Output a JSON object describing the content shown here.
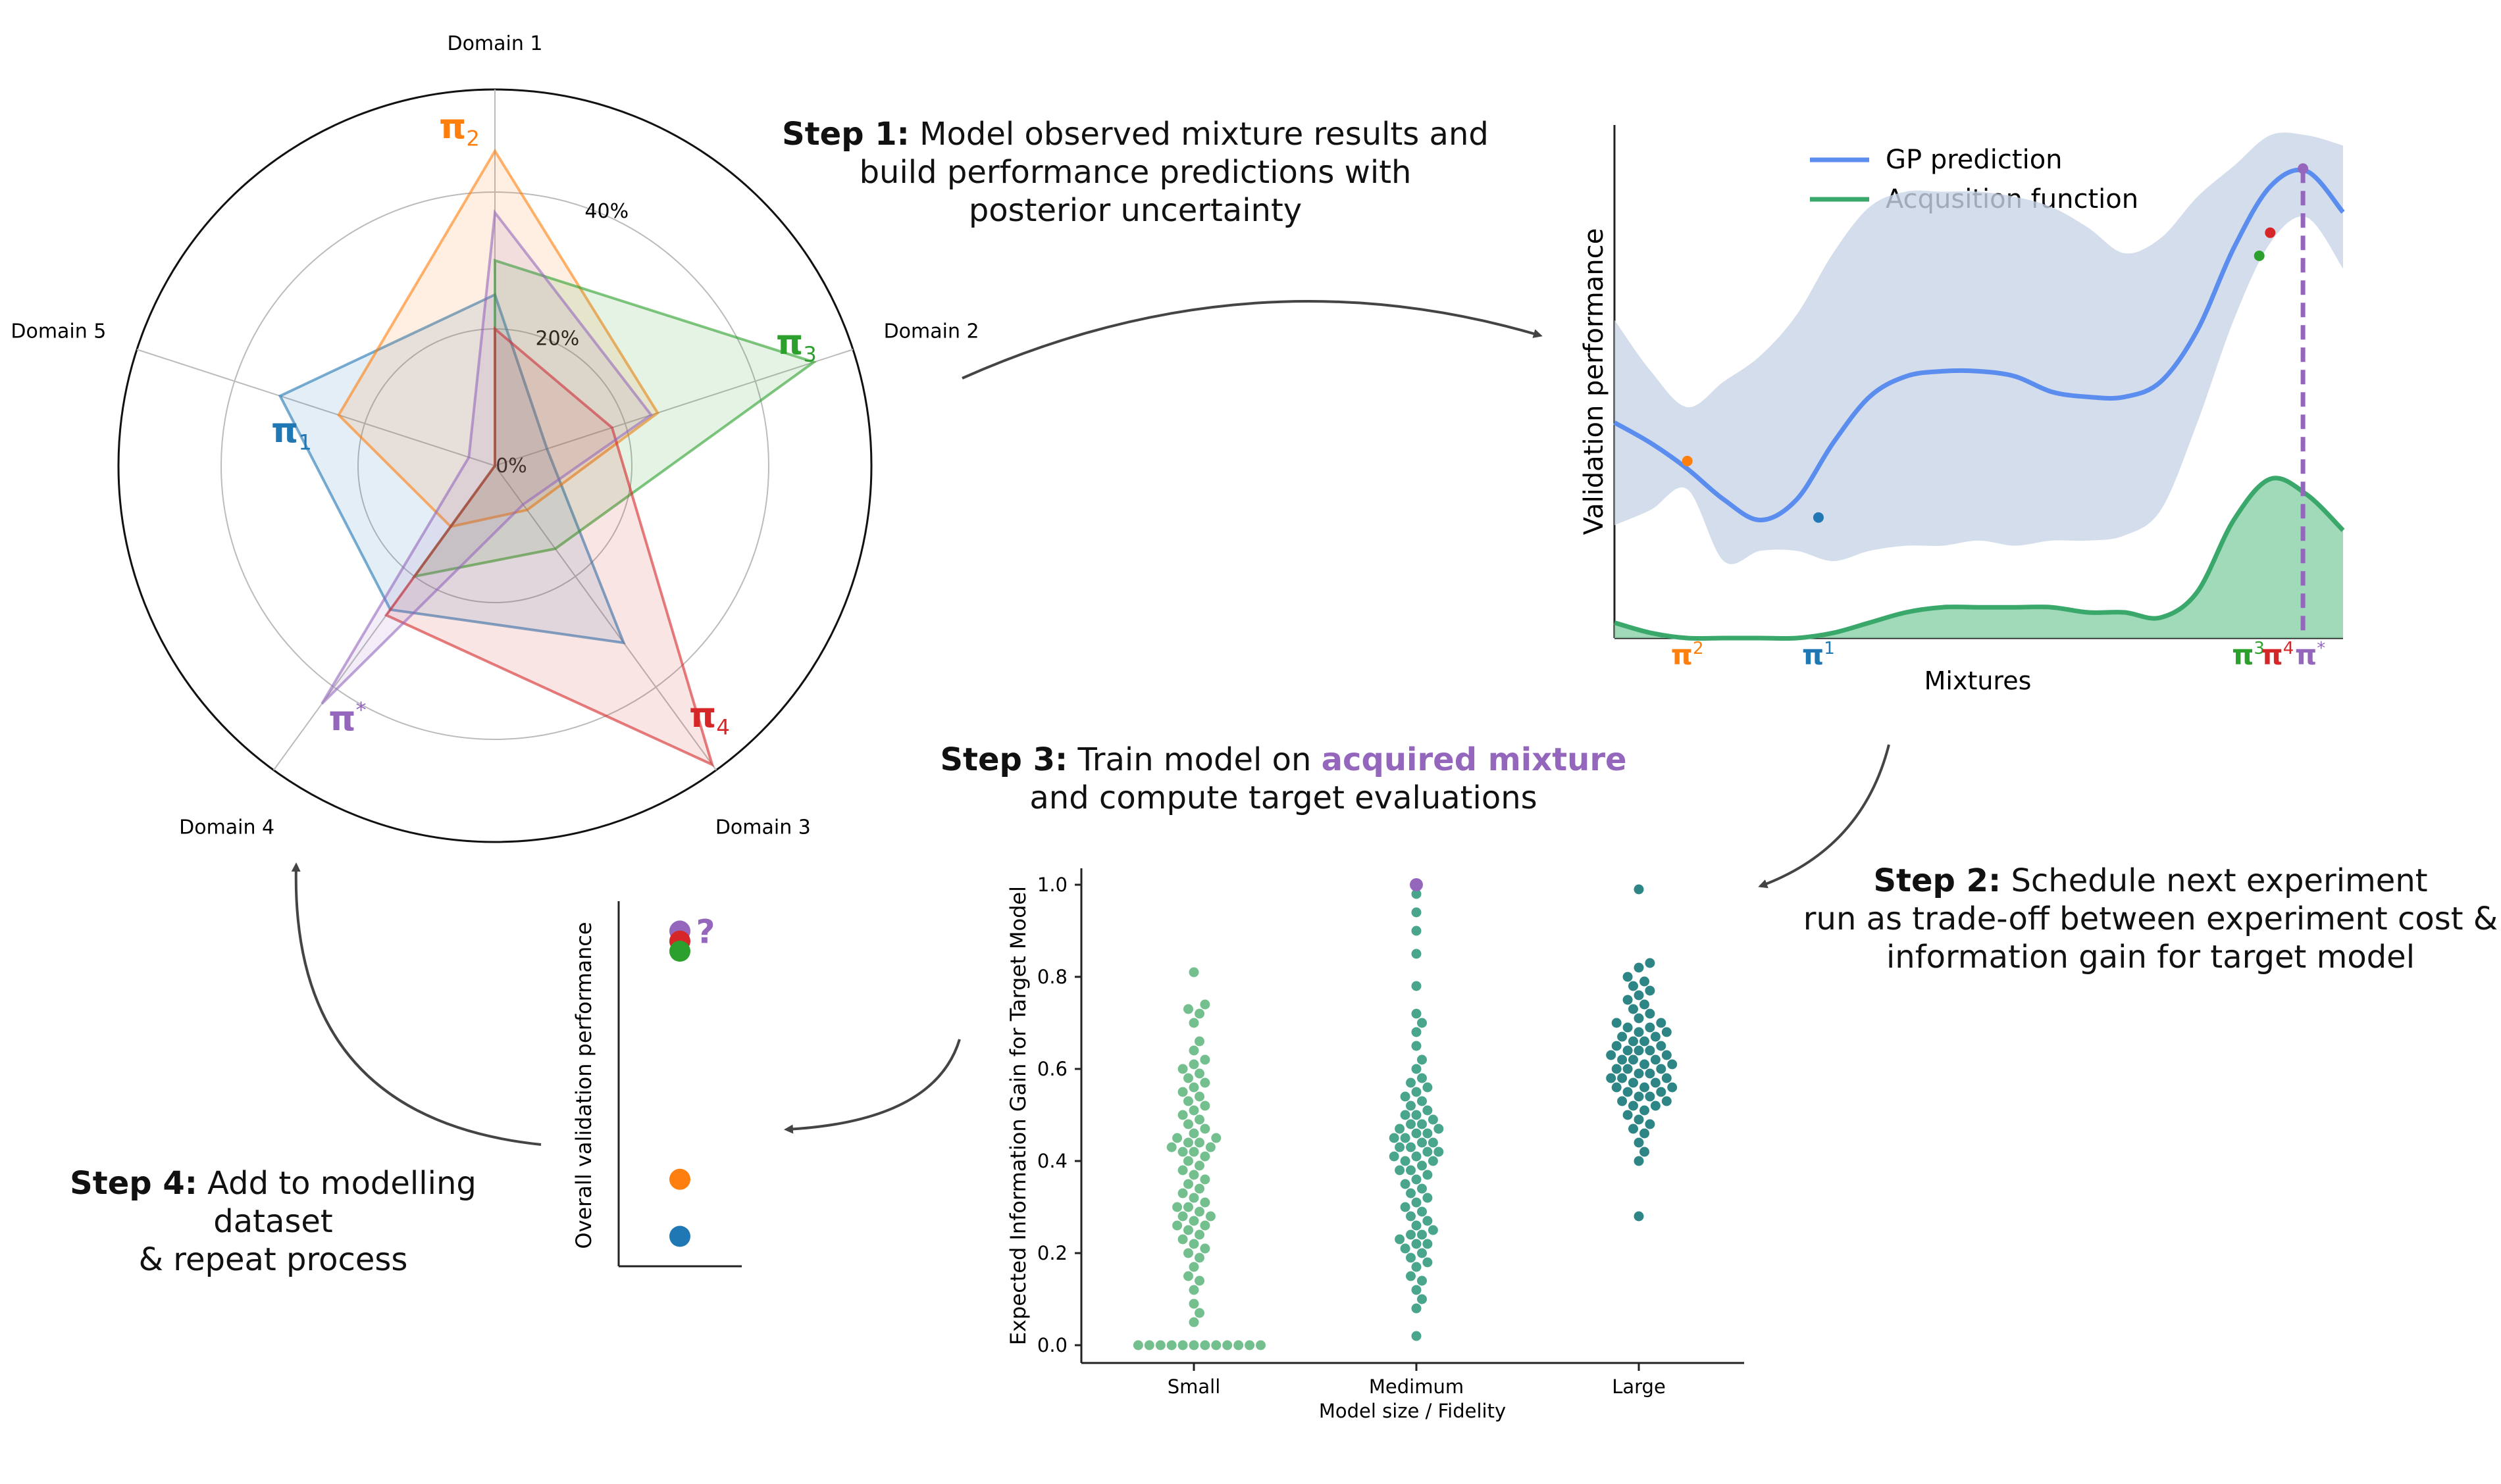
{
  "colors": {
    "pi1": "#1f77b4",
    "pi2": "#ff7f0e",
    "pi3": "#2ca02c",
    "pi4": "#d62728",
    "pistar": "#9467bd",
    "gp_line": "#5b8def",
    "gp_band": "#c9d5e6",
    "acq": "#3aa86b",
    "acq_fill": "#8fd3ad",
    "swarm_small": "#74bf8e",
    "swarm_medium": "#4aa58d",
    "swarm_large": "#2e8585",
    "arrow": "#444444"
  },
  "steps": {
    "step1": {
      "label": "Step 1:",
      "text_line1": "Model observed mixture results and",
      "text_line2": "build performance predictions with",
      "text_line3": "posterior uncertainty"
    },
    "step2": {
      "label": "Step 2:",
      "text_line1": "Schedule next experiment",
      "text_line2": "run as trade-off between experiment cost &",
      "text_line3": "information gain for target model"
    },
    "step3": {
      "label": "Step 3:",
      "text_pre": "Train model on",
      "highlight": "acquired mixture",
      "text_line2": "and compute target evaluations"
    },
    "step4": {
      "label": "Step 4:",
      "text_line1": "Add to modelling dataset",
      "text_line2": "& repeat process"
    }
  },
  "radar": {
    "axes": [
      "Domain 1",
      "Domain 2",
      "Domain 3",
      "Domain 4",
      "Domain 5"
    ],
    "ring_labels": [
      "0%",
      "20%",
      "40%"
    ],
    "series": [
      {
        "name": "π",
        "sub": "1",
        "sup": "",
        "color_key": "pi1",
        "values": [
          0.25,
          0.08,
          0.32,
          0.26,
          0.33
        ]
      },
      {
        "name": "π",
        "sub": "2",
        "sup": "",
        "color_key": "pi2",
        "values": [
          0.46,
          0.25,
          0.08,
          0.11,
          0.24
        ]
      },
      {
        "name": "π",
        "sub": "3",
        "sup": "",
        "color_key": "pi3",
        "values": [
          0.3,
          0.49,
          0.15,
          0.2,
          0.0
        ]
      },
      {
        "name": "π",
        "sub": "4",
        "sup": "",
        "color_key": "pi4",
        "values": [
          0.2,
          0.18,
          0.54,
          0.27,
          0.0
        ]
      },
      {
        "name": "π",
        "sub": "",
        "sup": "*",
        "color_key": "pistar",
        "values": [
          0.37,
          0.24,
          0.07,
          0.43,
          0.04
        ]
      }
    ]
  },
  "chart_data": [
    {
      "type": "line",
      "title": "",
      "xlabel": "Mixtures",
      "ylabel": "Validation performance",
      "legend": [
        "GP prediction",
        "Acqusition function"
      ],
      "legend_position": "top",
      "x": [
        0,
        0.05,
        0.1,
        0.15,
        0.2,
        0.25,
        0.3,
        0.35,
        0.4,
        0.45,
        0.5,
        0.55,
        0.6,
        0.65,
        0.7,
        0.75,
        0.8,
        0.85,
        0.9,
        0.95,
        1.0
      ],
      "series": [
        {
          "name": "GP prediction",
          "values": [
            0.42,
            0.38,
            0.33,
            0.27,
            0.23,
            0.27,
            0.38,
            0.47,
            0.51,
            0.52,
            0.52,
            0.51,
            0.48,
            0.47,
            0.47,
            0.5,
            0.6,
            0.76,
            0.88,
            0.91,
            0.83
          ]
        },
        {
          "name": "Acqusition function",
          "values": [
            0.03,
            0.01,
            0.0,
            0.0,
            0.0,
            0.0,
            0.01,
            0.03,
            0.05,
            0.06,
            0.06,
            0.06,
            0.06,
            0.05,
            0.05,
            0.04,
            0.09,
            0.23,
            0.31,
            0.28,
            0.21
          ]
        }
      ],
      "band_upper": [
        0.62,
        0.52,
        0.45,
        0.5,
        0.55,
        0.63,
        0.75,
        0.84,
        0.87,
        0.87,
        0.87,
        0.86,
        0.84,
        0.8,
        0.75,
        0.78,
        0.86,
        0.92,
        0.98,
        0.98,
        0.96
      ],
      "band_lower": [
        0.22,
        0.25,
        0.29,
        0.15,
        0.17,
        0.17,
        0.15,
        0.17,
        0.18,
        0.18,
        0.19,
        0.18,
        0.19,
        0.19,
        0.2,
        0.25,
        0.42,
        0.62,
        0.77,
        0.82,
        0.72
      ],
      "observed_points": [
        {
          "x": 0.1,
          "y": 0.345,
          "color_key": "pi2",
          "label": "π",
          "sub": "",
          "sup": "2"
        },
        {
          "x": 0.28,
          "y": 0.235,
          "color_key": "pi1",
          "label": "π",
          "sub": "",
          "sup": "1"
        },
        {
          "x": 0.885,
          "y": 0.745,
          "color_key": "pi3",
          "label": "π",
          "sub": "",
          "sup": "3"
        },
        {
          "x": 0.9,
          "y": 0.79,
          "color_key": "pi4",
          "label": "π",
          "sub": "",
          "sup": "4"
        },
        {
          "x": 0.945,
          "y": 0.915,
          "color_key": "pistar",
          "label": "π",
          "sub": "",
          "sup": "*"
        }
      ],
      "acquired_x": 0.945,
      "ylim": [
        0,
        1
      ],
      "xlim": [
        0,
        1
      ]
    },
    {
      "type": "scatter",
      "title": "",
      "xlabel": "Model size / Fidelity",
      "ylabel": "Expected Information Gain for Target Model",
      "categories": [
        "Small",
        "Medimum",
        "Large"
      ],
      "yticks": [
        "0.0",
        "0.2",
        "0.4",
        "0.6",
        "0.8",
        "1.0"
      ],
      "ylim": [
        -0.04,
        1.04
      ],
      "highlight": {
        "category": "Medimum",
        "value": 1.0,
        "color_key": "pistar"
      },
      "series": [
        {
          "name": "Small",
          "color_key": "swarm_small",
          "values": [
            0.0,
            0.0,
            0.0,
            0.0,
            0.0,
            0.0,
            0.0,
            0.0,
            0.0,
            0.0,
            0.0,
            0.0,
            0.05,
            0.07,
            0.09,
            0.12,
            0.14,
            0.15,
            0.17,
            0.19,
            0.2,
            0.21,
            0.22,
            0.23,
            0.24,
            0.25,
            0.26,
            0.26,
            0.27,
            0.28,
            0.28,
            0.29,
            0.3,
            0.3,
            0.31,
            0.32,
            0.33,
            0.34,
            0.35,
            0.36,
            0.37,
            0.38,
            0.39,
            0.4,
            0.41,
            0.42,
            0.42,
            0.43,
            0.43,
            0.44,
            0.44,
            0.45,
            0.45,
            0.46,
            0.47,
            0.48,
            0.49,
            0.5,
            0.51,
            0.52,
            0.53,
            0.54,
            0.55,
            0.56,
            0.57,
            0.58,
            0.59,
            0.6,
            0.61,
            0.62,
            0.64,
            0.66,
            0.7,
            0.72,
            0.73,
            0.74,
            0.81
          ]
        },
        {
          "name": "Medimum",
          "color_key": "swarm_medium",
          "values": [
            0.02,
            0.08,
            0.1,
            0.12,
            0.14,
            0.15,
            0.17,
            0.18,
            0.19,
            0.2,
            0.21,
            0.22,
            0.22,
            0.23,
            0.24,
            0.24,
            0.25,
            0.26,
            0.27,
            0.28,
            0.29,
            0.3,
            0.31,
            0.32,
            0.33,
            0.34,
            0.35,
            0.36,
            0.37,
            0.38,
            0.38,
            0.39,
            0.4,
            0.4,
            0.41,
            0.41,
            0.42,
            0.42,
            0.43,
            0.43,
            0.44,
            0.44,
            0.45,
            0.45,
            0.46,
            0.46,
            0.47,
            0.47,
            0.48,
            0.48,
            0.49,
            0.5,
            0.5,
            0.51,
            0.52,
            0.53,
            0.54,
            0.55,
            0.56,
            0.57,
            0.58,
            0.6,
            0.62,
            0.65,
            0.68,
            0.7,
            0.72,
            0.78,
            0.85,
            0.9,
            0.94,
            0.98
          ]
        },
        {
          "name": "Large",
          "color_key": "swarm_large",
          "values": [
            0.28,
            0.4,
            0.42,
            0.44,
            0.46,
            0.47,
            0.48,
            0.49,
            0.5,
            0.51,
            0.52,
            0.52,
            0.53,
            0.53,
            0.54,
            0.54,
            0.55,
            0.55,
            0.56,
            0.56,
            0.56,
            0.57,
            0.57,
            0.58,
            0.58,
            0.58,
            0.59,
            0.59,
            0.6,
            0.6,
            0.6,
            0.61,
            0.61,
            0.62,
            0.62,
            0.62,
            0.63,
            0.63,
            0.64,
            0.64,
            0.64,
            0.65,
            0.65,
            0.66,
            0.66,
            0.67,
            0.67,
            0.68,
            0.68,
            0.69,
            0.69,
            0.7,
            0.7,
            0.71,
            0.72,
            0.73,
            0.74,
            0.75,
            0.76,
            0.77,
            0.78,
            0.79,
            0.8,
            0.82,
            0.83,
            0.99
          ]
        }
      ]
    },
    {
      "type": "scatter",
      "title": "",
      "xlabel": "",
      "ylabel": "Overall validation performance",
      "points": [
        {
          "color_key": "pistar",
          "value": 0.96,
          "label": "?"
        },
        {
          "color_key": "pi4",
          "value": 0.93
        },
        {
          "color_key": "pi3",
          "value": 0.9
        },
        {
          "color_key": "pi2",
          "value": 0.22
        },
        {
          "color_key": "pi1",
          "value": 0.05
        }
      ],
      "ylim": [
        0,
        1
      ]
    }
  ]
}
